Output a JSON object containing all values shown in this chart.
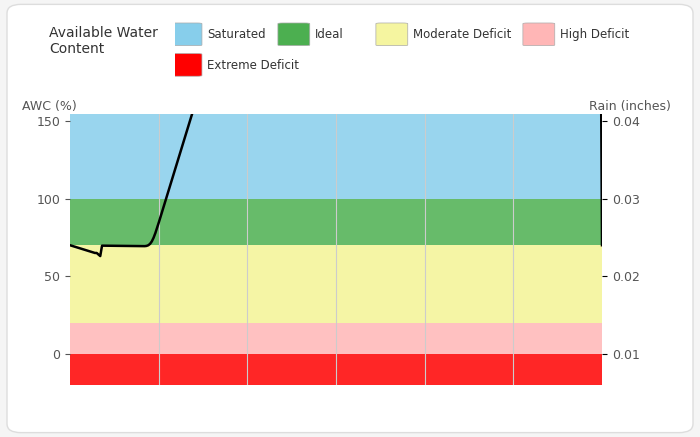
{
  "title": "Available Water\nContent",
  "ylabel_left": "AWC (%)",
  "ylabel_right": "Rain (inches)",
  "ylim": [
    -20,
    155
  ],
  "xlim": [
    0,
    100
  ],
  "yticks_left": [
    0,
    50,
    100,
    150
  ],
  "yticks_right": [
    0.01,
    0.02,
    0.03,
    0.04
  ],
  "yticks_right_vals": [
    0,
    50,
    100,
    150
  ],
  "zones": [
    {
      "ymin": 100,
      "ymax": 155,
      "color": "#87CEEB",
      "alpha": 0.85,
      "label": "Saturated"
    },
    {
      "ymin": 70,
      "ymax": 100,
      "color": "#4CAF50",
      "alpha": 0.85,
      "label": "Ideal"
    },
    {
      "ymin": 20,
      "ymax": 70,
      "color": "#F5F5A0",
      "alpha": 0.95,
      "label": "Moderate Deficit"
    },
    {
      "ymin": 0,
      "ymax": 20,
      "color": "#FFB6B6",
      "alpha": 0.85,
      "label": "High Deficit"
    },
    {
      "ymin": -20,
      "ymax": 0,
      "color": "#FF0000",
      "alpha": 0.85,
      "label": "Extreme Deficit"
    }
  ],
  "line_color": "#000000",
  "line_width": 1.8,
  "bg_color": "#FFFFFF",
  "fig_bg_color": "#F5F5F5",
  "grid_color": "#CCCCCC",
  "legend_items": [
    {
      "label": "Saturated",
      "color": "#87CEEB"
    },
    {
      "label": "Ideal",
      "color": "#4CAF50"
    },
    {
      "label": "Moderate Deficit",
      "color": "#F5F5A0"
    },
    {
      "label": "High Deficit",
      "color": "#FFB6B6"
    },
    {
      "label": "Extreme Deficit",
      "color": "#FF0000"
    }
  ]
}
